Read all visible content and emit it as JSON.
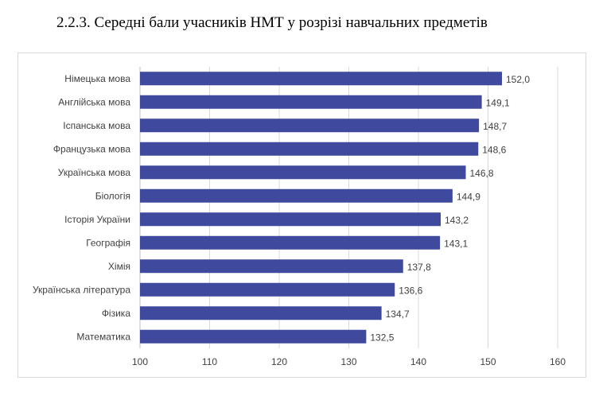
{
  "page": {
    "heading": "2.2.3. Середні бали учасників НМТ у розрізі навчальних предметів"
  },
  "colors": {
    "bar": "#3f4a9e",
    "gridline": "#d9d9d9",
    "axis": "#bfbfbf",
    "text": "#404040"
  },
  "chart_data": {
    "type": "bar",
    "orientation": "horizontal",
    "title": "",
    "xlabel": "",
    "ylabel": "",
    "categories": [
      "Німецька мова",
      "Англійська мова",
      "Іспанська мова",
      "Французька мова",
      "Українська мова",
      "Біологія",
      "Історія України",
      "Географія",
      "Хімія",
      "Українська література",
      "Фізика",
      "Математика"
    ],
    "values": [
      152.0,
      149.1,
      148.7,
      148.6,
      146.8,
      144.9,
      143.2,
      143.1,
      137.8,
      136.6,
      134.7,
      132.5
    ],
    "value_labels": [
      "152,0",
      "149,1",
      "148,7",
      "148,6",
      "146,8",
      "144,9",
      "143,2",
      "143,1",
      "137,8",
      "136,6",
      "134,7",
      "132,5"
    ],
    "xlim": [
      100,
      160
    ],
    "x_ticks": [
      100,
      110,
      120,
      130,
      140,
      150,
      160
    ],
    "grid": true,
    "legend": "none"
  }
}
